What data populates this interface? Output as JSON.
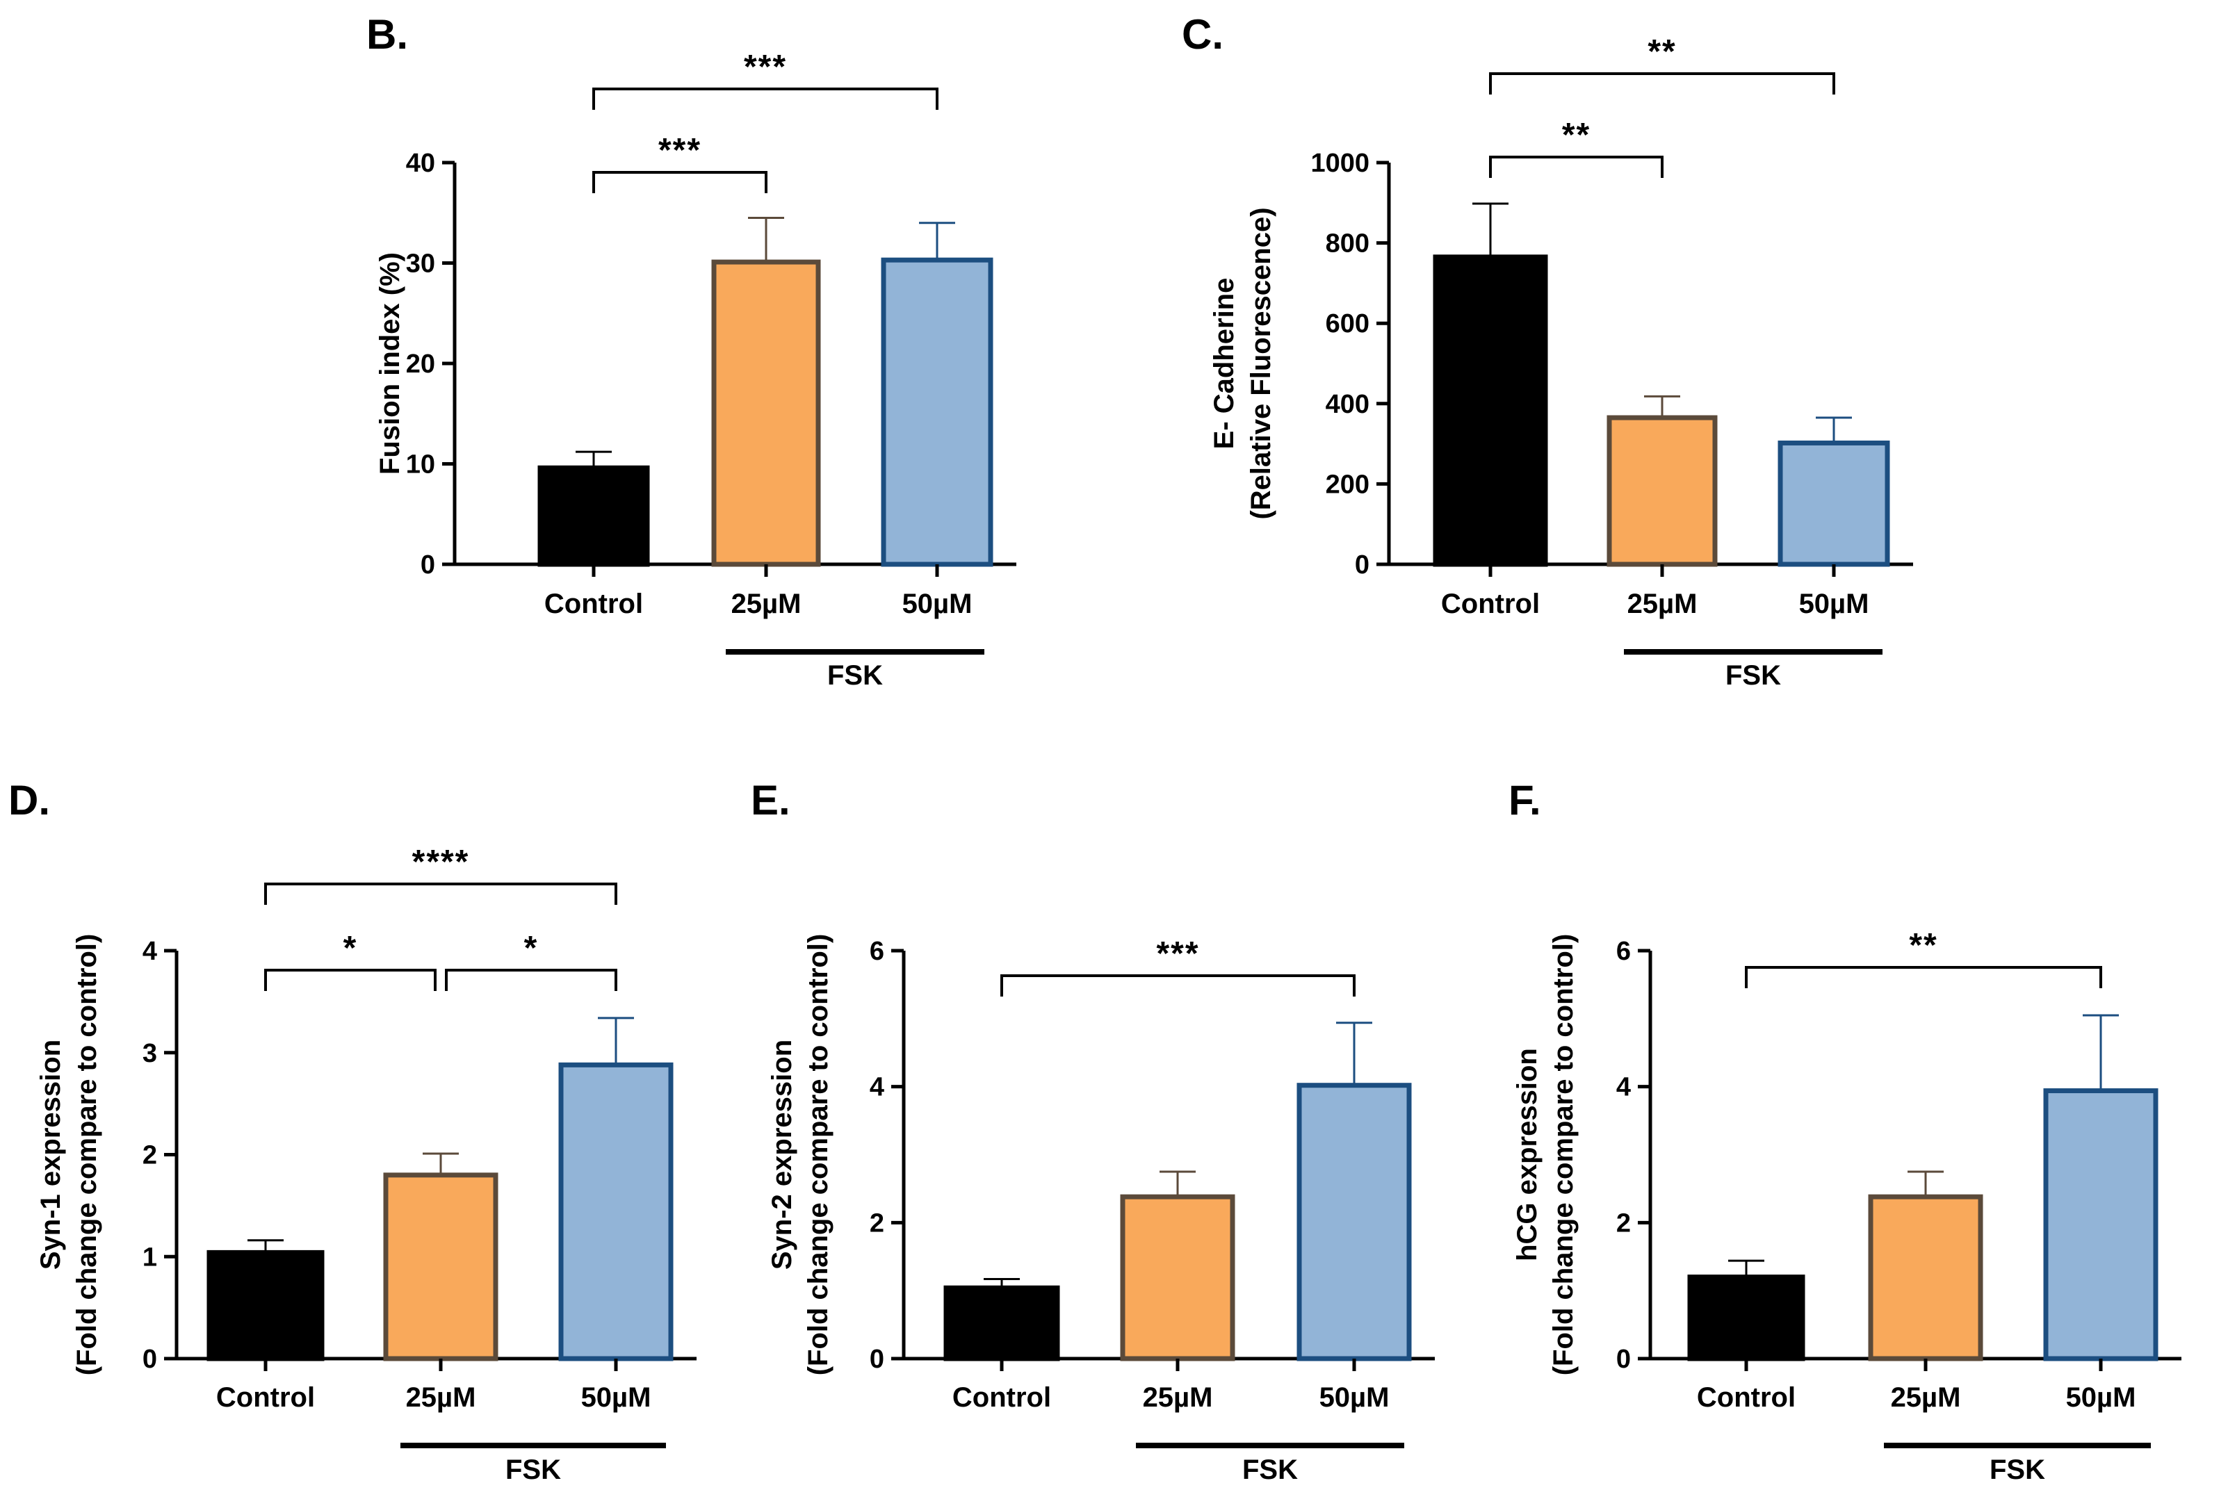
{
  "figure": {
    "title": "",
    "panels_note": ""
  },
  "chart_data": [
    {
      "type": "bar",
      "panel": "B.",
      "ylabel_lines": [
        "Fusion index (%)"
      ],
      "xlabel": "",
      "categories": [
        "Control",
        "25µM",
        "50µM"
      ],
      "group_label": "FSK",
      "values": [
        9.6,
        30.1,
        30.3
      ],
      "errors": [
        1.6,
        4.4,
        3.7
      ],
      "ylim": [
        0,
        40
      ],
      "yticks": [
        0,
        10,
        20,
        30,
        40
      ],
      "ytick_labels": [
        "0",
        "10",
        "20",
        "30",
        "40"
      ],
      "bar_fill": [
        "#000000",
        "#F9A95B",
        "#92B4D7"
      ],
      "bar_stroke": [
        "#000000",
        "#5B4A3A",
        "#1C4E80"
      ],
      "error_color": [
        "#000000",
        "#5B4A3A",
        "#1C4E80"
      ],
      "significance": [
        {
          "from": 0,
          "to": 1,
          "label": "***",
          "level": 0
        },
        {
          "from": 0,
          "to": 2,
          "label": "***",
          "level": 1
        }
      ]
    },
    {
      "type": "bar",
      "panel": "C.",
      "ylabel_lines": [
        "E- Cadherine",
        "(Relative Fluorescence)"
      ],
      "xlabel": "",
      "categories": [
        "Control",
        "25µM",
        "50µM"
      ],
      "group_label": "FSK",
      "values": [
        765,
        365,
        302
      ],
      "errors": [
        133,
        53,
        63
      ],
      "ylim": [
        0,
        1000
      ],
      "yticks": [
        0,
        200,
        400,
        600,
        800,
        1000
      ],
      "ytick_labels": [
        "0",
        "200",
        "400",
        "600",
        "800",
        "1000"
      ],
      "bar_fill": [
        "#000000",
        "#F9A95B",
        "#92B4D7"
      ],
      "bar_stroke": [
        "#000000",
        "#5B4A3A",
        "#1C4E80"
      ],
      "error_color": [
        "#000000",
        "#5B4A3A",
        "#1C4E80"
      ],
      "significance": [
        {
          "from": 0,
          "to": 1,
          "label": "**",
          "level": 0
        },
        {
          "from": 0,
          "to": 2,
          "label": "**",
          "level": 1
        }
      ]
    },
    {
      "type": "bar",
      "panel": "D.",
      "ylabel_lines": [
        "Syn-1 expression",
        "(Fold change compare to control)"
      ],
      "xlabel": "",
      "categories": [
        "Control",
        "25µM",
        "50µM"
      ],
      "group_label": "FSK",
      "values": [
        1.04,
        1.8,
        2.88
      ],
      "errors": [
        0.12,
        0.21,
        0.46
      ],
      "ylim": [
        0,
        4
      ],
      "yticks": [
        0,
        1,
        2,
        3,
        4
      ],
      "ytick_labels": [
        "0",
        "1",
        "2",
        "3",
        "4"
      ],
      "bar_fill": [
        "#000000",
        "#F9A95B",
        "#92B4D7"
      ],
      "bar_stroke": [
        "#000000",
        "#5B4A3A",
        "#1C4E80"
      ],
      "error_color": [
        "#000000",
        "#5B4A3A",
        "#1C4E80"
      ],
      "significance": [
        {
          "from": 0,
          "to": 1,
          "label": "*",
          "level": 0
        },
        {
          "from": 1,
          "to": 2,
          "label": "*",
          "level": 0
        },
        {
          "from": 0,
          "to": 2,
          "label": "****",
          "level": 1
        }
      ]
    },
    {
      "type": "bar",
      "panel": "E.",
      "ylabel_lines": [
        "Syn-2 expression",
        "(Fold change compare to control)"
      ],
      "xlabel": "",
      "categories": [
        "Control",
        "25µM",
        "50µM"
      ],
      "group_label": "FSK",
      "values": [
        1.04,
        2.38,
        4.02
      ],
      "errors": [
        0.13,
        0.37,
        0.92
      ],
      "ylim": [
        0,
        6
      ],
      "yticks": [
        0,
        2,
        4,
        6
      ],
      "ytick_labels": [
        "0",
        "2",
        "4",
        "6"
      ],
      "bar_fill": [
        "#000000",
        "#F9A95B",
        "#92B4D7"
      ],
      "bar_stroke": [
        "#000000",
        "#5B4A3A",
        "#1C4E80"
      ],
      "error_color": [
        "#000000",
        "#5B4A3A",
        "#1C4E80"
      ],
      "significance": [
        {
          "from": 0,
          "to": 2,
          "label": "***",
          "level": 0
        }
      ]
    },
    {
      "type": "bar",
      "panel": "F.",
      "ylabel_lines": [
        "hCG expression",
        "(Fold change compare to control)"
      ],
      "xlabel": "",
      "categories": [
        "Control",
        "25µM",
        "50µM"
      ],
      "group_label": "FSK",
      "values": [
        1.2,
        2.38,
        3.94
      ],
      "errors": [
        0.24,
        0.37,
        1.11
      ],
      "ylim": [
        0,
        6
      ],
      "yticks": [
        0,
        2,
        4,
        6
      ],
      "ytick_labels": [
        "0",
        "2",
        "4",
        "6"
      ],
      "bar_fill": [
        "#000000",
        "#F9A95B",
        "#92B4D7"
      ],
      "bar_stroke": [
        "#000000",
        "#5B4A3A",
        "#1C4E80"
      ],
      "error_color": [
        "#000000",
        "#5B4A3A",
        "#1C4E80"
      ],
      "significance": [
        {
          "from": 0,
          "to": 2,
          "label": "**",
          "level": 0
        }
      ]
    }
  ]
}
